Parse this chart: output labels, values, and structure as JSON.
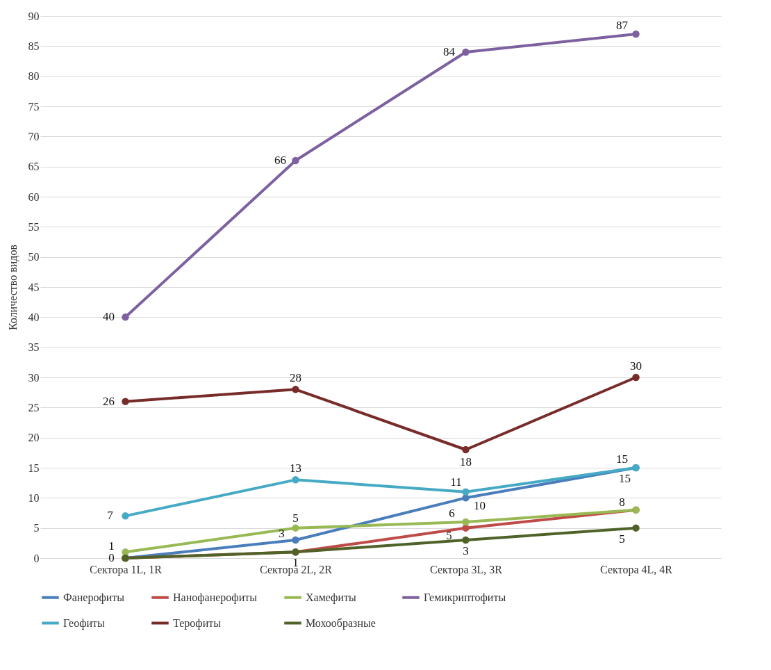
{
  "chart_data": {
    "type": "line",
    "ylabel": "Количество видов",
    "categories": [
      "Сектора 1L, 1R",
      "Сектора 2L, 2R",
      "Сектора 3L, 3R",
      "Сектора 4L, 4R"
    ],
    "series": [
      {
        "name": "Фанерофиты",
        "color": "#4a7ebb",
        "values": [
          0,
          3,
          10,
          15
        ],
        "value_labels": [
          "0",
          "3",
          "10",
          "15"
        ]
      },
      {
        "name": "Нанофанерофиты",
        "color": "#be4b48",
        "values": [
          0,
          1,
          5,
          8
        ],
        "value_labels": [
          null,
          null,
          "5",
          null
        ]
      },
      {
        "name": "Хамефиты",
        "color": "#98b954",
        "values": [
          1,
          5,
          6,
          8
        ],
        "value_labels": [
          "1",
          "5",
          "6",
          "8"
        ]
      },
      {
        "name": "Гемикриптофиты",
        "color": "#7d60a0",
        "values": [
          40,
          66,
          84,
          87
        ],
        "value_labels": [
          "40",
          "66",
          "84",
          "87"
        ]
      },
      {
        "name": "Геофиты",
        "color": "#46aac5",
        "values": [
          7,
          13,
          11,
          15
        ],
        "value_labels": [
          "7",
          "13",
          "11",
          "15"
        ]
      },
      {
        "name": "Терофиты",
        "color": "#772c2a",
        "values": [
          26,
          28,
          18,
          30
        ],
        "value_labels": [
          "26",
          "28",
          "18",
          "30"
        ]
      },
      {
        "name": "Мохообразные",
        "color": "#4f6228",
        "values": [
          0,
          1,
          3,
          5
        ],
        "value_labels": [
          null,
          "1",
          "3",
          "5"
        ]
      }
    ],
    "ylim": [
      0,
      90
    ],
    "yticks": [
      0,
      5,
      10,
      15,
      20,
      25,
      30,
      35,
      40,
      45,
      50,
      55,
      60,
      65,
      70,
      75,
      80,
      85,
      90
    ],
    "grid": "y",
    "legend": "bottom",
    "marker": "circle",
    "line_style": "solid"
  }
}
